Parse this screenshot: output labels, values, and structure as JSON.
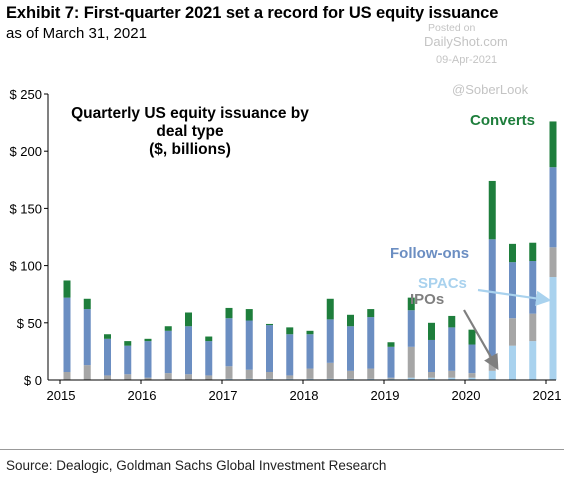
{
  "header": {
    "title": "Exhibit 7: First-quarter 2021 set a record for US equity issuance",
    "subtitle": "as of March 31, 2021"
  },
  "watermark": {
    "posted": "Posted on",
    "site": "DailyShot.com",
    "date": "09-Apr-2021",
    "handle": "@SoberLook"
  },
  "footer": {
    "source": "Source: Dealogic, Goldman Sachs Global Investment Research"
  },
  "chart_data": {
    "type": "bar",
    "stacked": true,
    "title": "Quarterly US equity issuance by deal type ($, billions)",
    "title_lines": [
      "Quarterly US equity issuance by",
      "deal type",
      "($, billions)"
    ],
    "categories": [
      "2015Q1",
      "2015Q2",
      "2015Q3",
      "2015Q4",
      "2016Q1",
      "2016Q2",
      "2016Q3",
      "2016Q4",
      "2017Q1",
      "2017Q2",
      "2017Q3",
      "2017Q4",
      "2018Q1",
      "2018Q2",
      "2018Q3",
      "2018Q4",
      "2019Q1",
      "2019Q2",
      "2019Q3",
      "2019Q4",
      "2020Q1",
      "2020Q2",
      "2020Q3",
      "2020Q4",
      "2021Q1"
    ],
    "x_tick_labels": [
      "2015",
      "2016",
      "2017",
      "2018",
      "2019",
      "2020",
      "2021"
    ],
    "y_tick_labels": [
      "$ 0",
      "$ 50",
      "$ 100",
      "$ 150",
      "$ 200",
      "$ 250"
    ],
    "ylim": [
      0,
      250
    ],
    "y_step": 50,
    "series": [
      {
        "name": "SPACs",
        "color": "#a9d2ee",
        "values": [
          0,
          0,
          0,
          0,
          0,
          0,
          0,
          0,
          1,
          1,
          1,
          1,
          1,
          1,
          1,
          1,
          1,
          2,
          2,
          2,
          2,
          8,
          30,
          34,
          90
        ]
      },
      {
        "name": "IPOs",
        "color": "#a6a6a6",
        "values": [
          7,
          13,
          4,
          5,
          2,
          6,
          5,
          4,
          11,
          8,
          6,
          3,
          9,
          14,
          7,
          9,
          1,
          27,
          5,
          6,
          4,
          13,
          24,
          24,
          26
        ]
      },
      {
        "name": "Follow-ons",
        "color": "#6b8ec2",
        "values": [
          65,
          49,
          32,
          25,
          32,
          37,
          42,
          30,
          42,
          43,
          41,
          36,
          30,
          38,
          39,
          45,
          27,
          32,
          28,
          38,
          25,
          102,
          49,
          46,
          70
        ]
      },
      {
        "name": "Converts",
        "color": "#1e7e3c",
        "values": [
          15,
          9,
          4,
          4,
          2,
          4,
          12,
          4,
          9,
          10,
          1,
          6,
          3,
          18,
          10,
          7,
          4,
          11,
          15,
          10,
          13,
          51,
          16,
          16,
          40
        ]
      }
    ],
    "legend_placement": "inline-annotations",
    "grid": false
  }
}
